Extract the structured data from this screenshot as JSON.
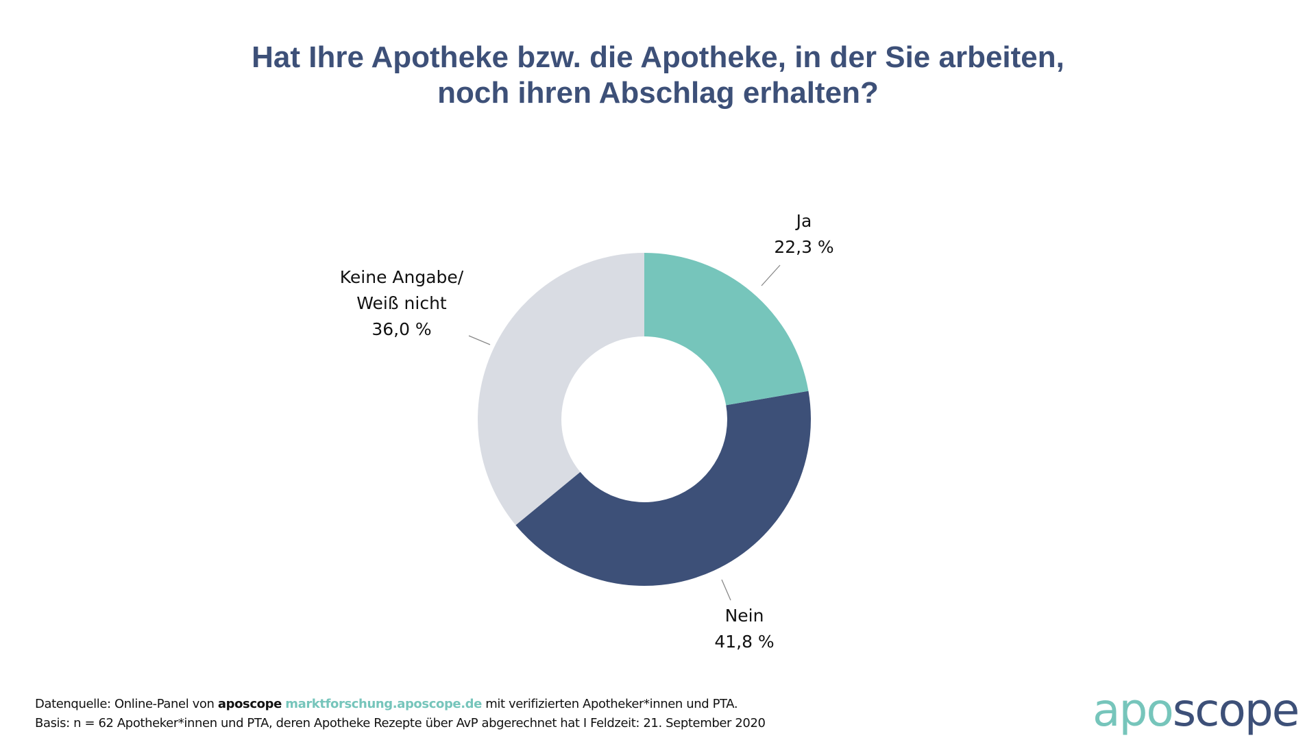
{
  "chart_data": {
    "type": "pie",
    "variant": "donut",
    "title": [
      "Hat Ihre Apotheke bzw. die Apotheke, in der Sie arbeiten,",
      "noch ihren Abschlag erhalten?"
    ],
    "unit": "%",
    "slices": [
      {
        "label": "Ja",
        "value": 22.3,
        "value_label": "22,3 %",
        "color": "#76c5bb"
      },
      {
        "label": "Nein",
        "value": 41.8,
        "value_label": "41,8 %",
        "color": "#3d5078"
      },
      {
        "label_lines": [
          "Keine Angabe/",
          "Weiß nicht"
        ],
        "value": 36.0,
        "value_label": "36,0 %",
        "color": "#d9dce3"
      }
    ],
    "start": "top",
    "direction": "clockwise",
    "legend": "none (direct labels)"
  },
  "footer": {
    "line1_prefix": "Datenquelle: Online-Panel von ",
    "line1_brand": "aposcope",
    "line1_link": "marktforschung.aposcope.de",
    "line1_suffix": " mit verifizierten Apotheker*innen und PTA.",
    "line2": "Basis: n = 62  Apotheker*innen und PTA, deren Apotheke Rezepte über AvP abgerechnet hat I Feldzeit: 21. September 2020"
  },
  "logo": {
    "part1": "apo",
    "part2": "scope",
    "color1": "#76c5bb",
    "color2": "#3d5078"
  }
}
